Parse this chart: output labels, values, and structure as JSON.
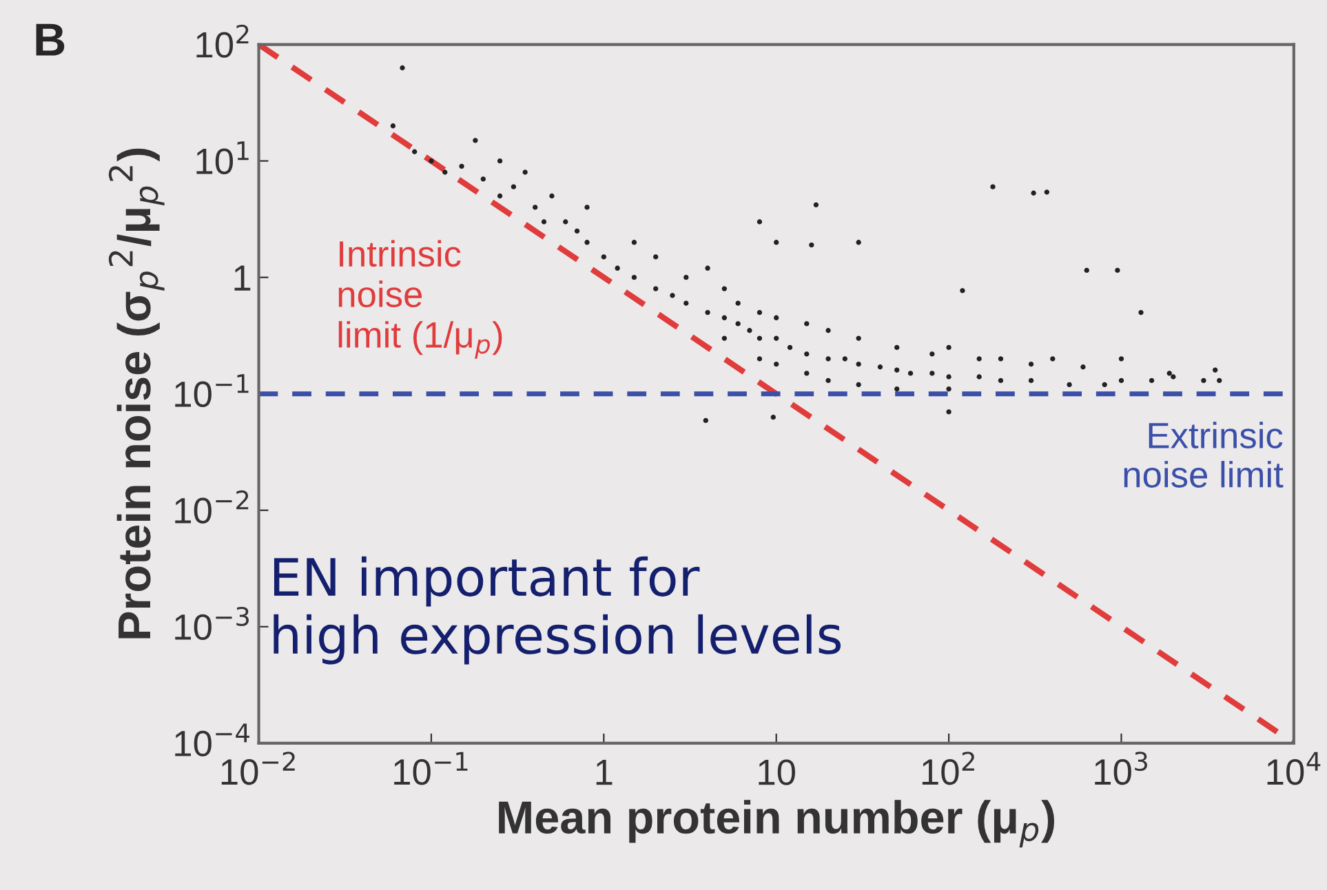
{
  "chart_data": {
    "type": "scatter",
    "xlabel": "Mean protein number (μ$_{p}$)",
    "ylabel": "Protein noise (σ$_{p}$$^{2}$/μ$_{p}$$^{2}$)",
    "log": "xy",
    "grid": false,
    "legend": false,
    "marker": "circle",
    "xlim": [
      0.01,
      10000
    ],
    "ylim": [
      0.0001,
      100
    ],
    "xticks": [
      {
        "value": 0.01,
        "label": "10$^{−2}$"
      },
      {
        "value": 0.1,
        "label": "10$^{−1}$"
      },
      {
        "value": 1,
        "label": "1"
      },
      {
        "value": 10,
        "label": "10"
      },
      {
        "value": 100,
        "label": "10$^{2}$"
      },
      {
        "value": 1000,
        "label": "10$^{3}$"
      },
      {
        "value": 10000,
        "label": "10$^{4}$"
      }
    ],
    "yticks": [
      {
        "value": 0.0001,
        "label": "10$^{−4}$"
      },
      {
        "value": 0.001,
        "label": "10$^{−3}$"
      },
      {
        "value": 0.01,
        "label": "10$^{−2}$"
      },
      {
        "value": 0.1,
        "label": "10$^{−1}$"
      },
      {
        "value": 1,
        "label": "1"
      },
      {
        "value": 10,
        "label": "10$^{1}$"
      },
      {
        "value": 100,
        "label": "10$^{2}$"
      }
    ],
    "annotations": [
      "B",
      "EN important for\nhigh expression levels"
    ],
    "ref_lines": [
      {
        "axis": "y",
        "value": 0.1,
        "label": "Extrinsic\nnoise limit",
        "color": "#3a4fa8",
        "line_style": "dashed"
      }
    ],
    "series": [
      {
        "color": "#222222",
        "x": [
          0.068,
          0.06,
          0.08,
          0.1,
          0.12,
          0.15,
          0.18,
          0.2,
          0.25,
          0.3,
          0.25,
          0.35,
          0.4,
          0.5,
          0.45,
          0.6,
          0.7,
          0.8,
          1,
          1.2,
          1.5,
          2,
          2.5,
          3,
          4,
          5,
          6,
          7,
          8,
          10,
          12,
          15,
          20,
          25,
          30,
          40,
          50,
          60,
          80,
          100,
          150,
          200,
          300,
          500,
          800,
          1000,
          1500,
          2000,
          3000,
          0.8,
          1.5,
          2,
          3,
          4,
          5,
          6,
          8,
          10,
          15,
          20,
          30,
          50,
          80,
          100,
          150,
          200,
          300,
          400,
          600,
          1000,
          5,
          8,
          10,
          15,
          20,
          30,
          50,
          100,
          180,
          310,
          370,
          17,
          16,
          630,
          950,
          120,
          1300,
          1900,
          3700,
          3500,
          100,
          3.9,
          9.6,
          8,
          10,
          30
        ],
        "values": [
          63,
          20,
          12,
          10,
          8,
          9,
          15,
          7,
          10,
          6,
          5,
          8,
          4,
          5,
          3,
          3,
          2.5,
          2,
          1.5,
          1.2,
          1,
          0.8,
          0.7,
          0.6,
          0.5,
          0.45,
          0.4,
          0.35,
          0.3,
          0.3,
          0.25,
          0.22,
          0.2,
          0.2,
          0.18,
          0.17,
          0.16,
          0.15,
          0.15,
          0.14,
          0.14,
          0.13,
          0.13,
          0.12,
          0.12,
          0.13,
          0.13,
          0.14,
          0.13,
          4,
          2,
          1.5,
          1,
          1.2,
          0.8,
          0.6,
          0.5,
          0.45,
          0.4,
          0.35,
          0.3,
          0.25,
          0.22,
          0.25,
          0.2,
          0.2,
          0.18,
          0.2,
          0.17,
          0.2,
          0.3,
          0.2,
          0.18,
          0.15,
          0.13,
          0.12,
          0.11,
          0.11,
          6,
          5.3,
          5.4,
          4.2,
          1.9,
          1.15,
          1.15,
          0.77,
          0.5,
          0.15,
          0.13,
          0.16,
          0.07,
          0.059,
          0.063,
          3,
          2,
          2
        ]
      },
      {
        "type": "line",
        "name": "Intrinsic\nnoise\nlimit (1/μ$_{p}$)",
        "color": "#e03c3c",
        "line_style": "dashed",
        "marker": "none",
        "x": [
          0.01,
          10000
        ],
        "values": [
          100,
          0.0001
        ]
      }
    ]
  }
}
